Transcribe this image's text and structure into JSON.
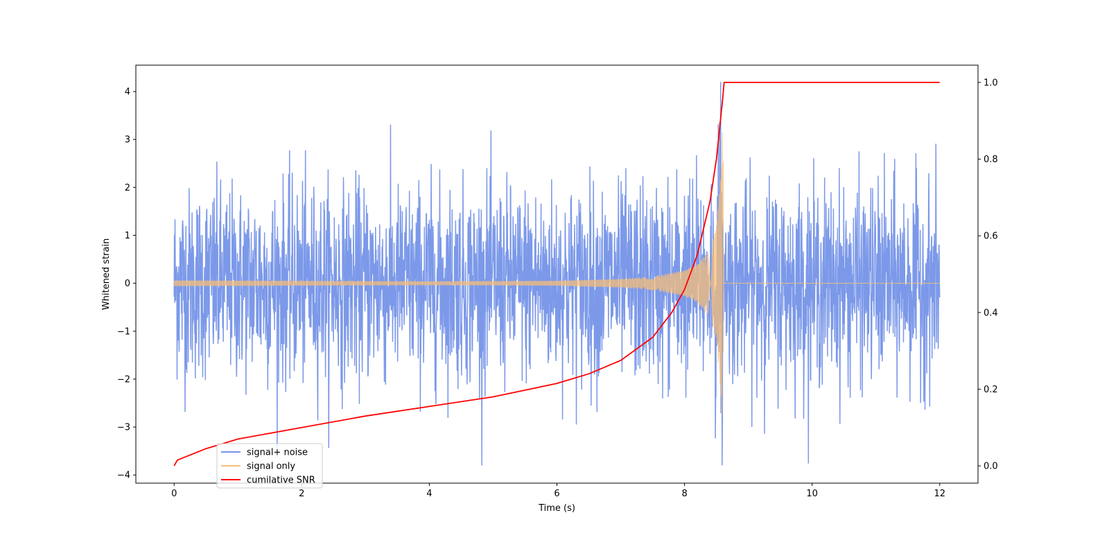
{
  "chart_data": {
    "type": "line",
    "xlabel": "Time (s)",
    "ylabel": "Whitened strain",
    "ylabel_right": "",
    "xlim": [
      -0.6,
      12.6
    ],
    "ylim": [
      -4.17,
      4.55
    ],
    "ylim_right": [
      -0.045,
      1.045
    ],
    "x_ticks": [
      0,
      2,
      4,
      6,
      8,
      10,
      12
    ],
    "x_tick_labels": [
      "0",
      "2",
      "4",
      "6",
      "8",
      "10",
      "12"
    ],
    "y_ticks": [
      -4,
      -3,
      -2,
      -1,
      0,
      1,
      2,
      3,
      4
    ],
    "y_tick_labels": [
      "−4",
      "−3",
      "−2",
      "−1",
      "0",
      "1",
      "2",
      "3",
      "4"
    ],
    "y2_ticks": [
      0.0,
      0.2,
      0.4,
      0.6,
      0.8,
      1.0
    ],
    "y2_tick_labels": [
      "0.0",
      "0.2",
      "0.4",
      "0.6",
      "0.8",
      "1.0"
    ],
    "grid": false,
    "legend_position": "lower-left",
    "series": [
      {
        "name": "signal+ noise",
        "color": "#7593e8",
        "axis": "left",
        "x_range": [
          0,
          12
        ],
        "noise_std": 1.0,
        "peak_extremes": {
          "max": 4.2,
          "min": -3.8
        }
      },
      {
        "name": "signal only",
        "color": "#f5be78",
        "axis": "left",
        "x_range": [
          0,
          12
        ],
        "envelope": {
          "x": [
            0.0,
            2.0,
            4.0,
            6.0,
            7.0,
            7.5,
            8.0,
            8.2,
            8.4,
            8.5,
            8.58,
            8.6,
            8.62,
            12.0
          ],
          "y": [
            0.06,
            0.05,
            0.04,
            0.05,
            0.09,
            0.14,
            0.27,
            0.4,
            0.7,
            1.2,
            2.5,
            3.6,
            0.0,
            0.0
          ]
        }
      },
      {
        "name": "cumilative SNR",
        "color": "#ff0000",
        "axis": "right",
        "x": [
          0.0,
          0.05,
          0.5,
          1.0,
          2.0,
          3.0,
          4.0,
          5.0,
          6.0,
          6.5,
          7.0,
          7.5,
          7.8,
          8.0,
          8.2,
          8.4,
          8.5,
          8.55,
          8.6,
          8.62,
          12.0
        ],
        "y": [
          0.0,
          0.015,
          0.045,
          0.07,
          0.1,
          0.13,
          0.155,
          0.18,
          0.215,
          0.24,
          0.275,
          0.335,
          0.4,
          0.46,
          0.55,
          0.69,
          0.8,
          0.88,
          0.96,
          1.0,
          1.0
        ]
      }
    ]
  }
}
